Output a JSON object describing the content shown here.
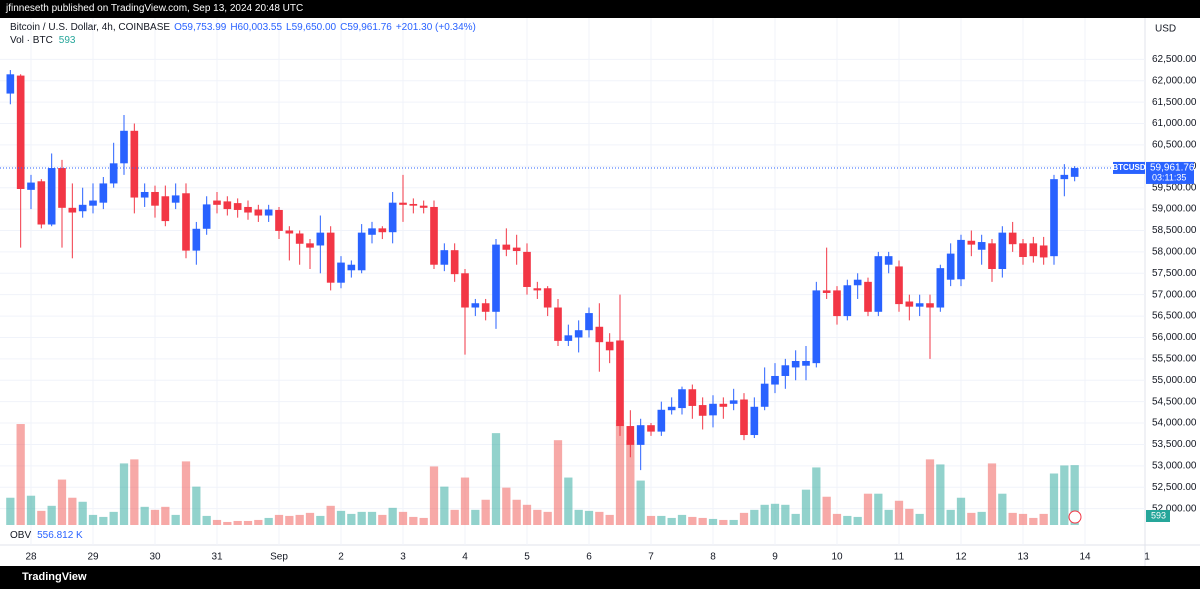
{
  "header": "jfinneseth published on TradingView.com, Sep 13, 2024 20:48 UTC",
  "footer": "TradingView",
  "chart_data": {
    "type": "candlestick",
    "title": "Bitcoin / U.S. Dollar, 4h, COINBASE",
    "ohlc_legend": [
      "O59,753.99",
      "H60,003.55",
      "L59,650.00",
      "C59,961.76",
      "+201.30 (+0.34%)"
    ],
    "currency": "USD",
    "up_color": "#2962ff",
    "down_color": "#f23645",
    "vol_up_color": "#26a69a",
    "vol_down_color": "#ef5350",
    "open": [
      61700,
      62120,
      59450,
      59650,
      58640,
      59960,
      59030,
      58950,
      59080,
      59150,
      59600,
      60070,
      60830,
      59270,
      59400,
      59300,
      59150,
      59370,
      58030,
      58540,
      59200,
      59180,
      59140,
      59050,
      58990,
      58850,
      58980,
      58500,
      58430,
      58200,
      58150,
      58450,
      57280,
      57570,
      57570,
      58400,
      58550,
      58460,
      59150,
      59120,
      59080,
      59050,
      57700,
      58040,
      57500,
      56700,
      56800,
      56600,
      58170,
      58100,
      58000,
      57150,
      57150,
      56700,
      55920,
      56000,
      56170,
      56250,
      55900,
      55930,
      53930,
      53490,
      53950,
      53800,
      54300,
      54350,
      54790,
      54420,
      54180,
      54450,
      54450,
      54550,
      53720,
      54380,
      54900,
      55100,
      55300,
      55340,
      55400,
      57100,
      57100,
      56500,
      57220,
      57300,
      56600,
      57700,
      57660,
      56840,
      56720,
      56800,
      56700,
      57350,
      57360,
      58260,
      58050,
      58200,
      57600,
      58450,
      58200,
      58200,
      58150,
      57900,
      59700,
      59753.99
    ],
    "high": [
      62250,
      62150,
      59800,
      59700,
      60300,
      60150,
      59600,
      59500,
      59600,
      59750,
      60550,
      61200,
      61000,
      59600,
      59550,
      59550,
      59600,
      59600,
      58700,
      59300,
      59400,
      59300,
      59250,
      59200,
      59100,
      59100,
      59050,
      58600,
      58500,
      58300,
      58850,
      58600,
      57900,
      57800,
      58650,
      58700,
      58600,
      59400,
      59800,
      59250,
      59200,
      59200,
      58200,
      58200,
      57600,
      56900,
      56900,
      58300,
      58550,
      58400,
      58200,
      57300,
      57200,
      56900,
      56300,
      56400,
      56700,
      56800,
      56100,
      57000,
      54300,
      54100,
      54000,
      54500,
      54600,
      54850,
      54900,
      54600,
      54650,
      54600,
      54800,
      54700,
      54600,
      55300,
      55400,
      55500,
      55700,
      55800,
      57300,
      58100,
      57200,
      57350,
      57500,
      57400,
      58000,
      58000,
      57800,
      57000,
      57000,
      57000,
      57700,
      58200,
      58400,
      58500,
      58400,
      58300,
      58600,
      58700,
      58300,
      58350,
      58350,
      59800,
      60050,
      60003.55
    ],
    "low": [
      61450,
      58100,
      59000,
      58550,
      58600,
      58100,
      57850,
      58800,
      58900,
      59000,
      59500,
      59800,
      58900,
      59050,
      58800,
      58600,
      59000,
      57850,
      57700,
      58400,
      58900,
      58850,
      58800,
      58750,
      58700,
      58700,
      58300,
      57800,
      57700,
      57600,
      57500,
      57100,
      57150,
      57400,
      57500,
      58200,
      58300,
      58200,
      58700,
      58900,
      58900,
      57600,
      57550,
      57300,
      55600,
      56500,
      56400,
      56200,
      57900,
      57700,
      57000,
      56900,
      56500,
      55800,
      55800,
      55650,
      56000,
      55200,
      55400,
      53700,
      53200,
      52900,
      53700,
      53700,
      54200,
      54200,
      54100,
      53850,
      53900,
      54100,
      54300,
      53600,
      53650,
      54300,
      54700,
      54800,
      55000,
      55000,
      55300,
      56900,
      56300,
      56400,
      56900,
      56500,
      56500,
      57500,
      56600,
      56400,
      56500,
      55500,
      56600,
      57200,
      57200,
      57900,
      57700,
      57300,
      57400,
      58000,
      57700,
      57750,
      57700,
      57700,
      59300,
      59650
    ],
    "close": [
      62150,
      59470,
      59620,
      58640,
      59960,
      59030,
      58920,
      59100,
      59200,
      59600,
      60070,
      60830,
      59270,
      59400,
      59080,
      58720,
      59320,
      58030,
      58540,
      59110,
      59100,
      59000,
      58980,
      58920,
      58850,
      58990,
      58490,
      58430,
      58190,
      58100,
      58450,
      57280,
      57750,
      57700,
      58450,
      58550,
      58460,
      59150,
      59100,
      59080,
      59030,
      57700,
      58040,
      57480,
      56700,
      56800,
      56600,
      58170,
      58050,
      58020,
      57180,
      57100,
      56700,
      55920,
      56050,
      56170,
      56570,
      55890,
      55700,
      53930,
      53490,
      53950,
      53800,
      54310,
      54380,
      54790,
      54400,
      54170,
      54450,
      54380,
      54530,
      53720,
      54380,
      54920,
      55100,
      55350,
      55450,
      55450,
      57100,
      57040,
      56500,
      57220,
      57350,
      56600,
      57900,
      57900,
      56780,
      56720,
      56800,
      56700,
      57620,
      57960,
      58280,
      58170,
      58230,
      57600,
      58450,
      58180,
      57880,
      57900,
      57870,
      59700,
      59800,
      59961.76
    ],
    "volume": {
      "name": "Vol · BTC",
      "label": "593",
      "values": [
        270,
        1000,
        290,
        140,
        190,
        450,
        270,
        230,
        100,
        80,
        130,
        610,
        650,
        180,
        150,
        180,
        100,
        630,
        380,
        90,
        50,
        30,
        40,
        40,
        50,
        70,
        100,
        90,
        100,
        120,
        90,
        190,
        140,
        110,
        130,
        130,
        100,
        170,
        130,
        80,
        70,
        580,
        380,
        150,
        470,
        150,
        250,
        910,
        370,
        250,
        200,
        150,
        130,
        840,
        470,
        150,
        140,
        130,
        100,
        1040,
        840,
        440,
        90,
        90,
        70,
        100,
        80,
        70,
        60,
        50,
        50,
        120,
        150,
        200,
        210,
        200,
        110,
        350,
        570,
        280,
        110,
        90,
        80,
        310,
        310,
        150,
        240,
        160,
        110,
        650,
        600,
        150,
        270,
        120,
        130,
        610,
        310,
        120,
        110,
        70,
        110,
        510,
        590,
        593
      ]
    },
    "obv": {
      "name": "OBV",
      "label": "556.812 K"
    },
    "last_price": {
      "symbol": "BTCUSD",
      "value": 59961.76,
      "label": "59,961.76",
      "countdown": "03:11:35"
    },
    "xlim": [
      -1,
      110
    ],
    "xticks": [
      {
        "value": 2,
        "label": "28"
      },
      {
        "value": 8,
        "label": "29"
      },
      {
        "value": 14,
        "label": "30"
      },
      {
        "value": 20,
        "label": "31"
      },
      {
        "value": 26,
        "label": "Sep"
      },
      {
        "value": 32,
        "label": "2"
      },
      {
        "value": 38,
        "label": "3"
      },
      {
        "value": 44,
        "label": "4"
      },
      {
        "value": 50,
        "label": "5"
      },
      {
        "value": 56,
        "label": "6"
      },
      {
        "value": 62,
        "label": "7"
      },
      {
        "value": 68,
        "label": "8"
      },
      {
        "value": 74,
        "label": "9"
      },
      {
        "value": 80,
        "label": "10"
      },
      {
        "value": 86,
        "label": "11"
      },
      {
        "value": 92,
        "label": "12"
      },
      {
        "value": 98,
        "label": "13"
      },
      {
        "value": 104,
        "label": "14"
      },
      {
        "value": 110,
        "label": "1"
      }
    ],
    "ylim": [
      51150,
      63466
    ],
    "yticks": [
      {
        "value": 52000,
        "label": "52,000.00"
      },
      {
        "value": 52500,
        "label": "52,500.00"
      },
      {
        "value": 53000,
        "label": "53,000.00"
      },
      {
        "value": 53500,
        "label": "53,500.00"
      },
      {
        "value": 54000,
        "label": "54,000.00"
      },
      {
        "value": 54500,
        "label": "54,500.00"
      },
      {
        "value": 55000,
        "label": "55,000.00"
      },
      {
        "value": 55500,
        "label": "55,500.00"
      },
      {
        "value": 56000,
        "label": "56,000.00"
      },
      {
        "value": 56500,
        "label": "56,500.00"
      },
      {
        "value": 57000,
        "label": "57,000.00"
      },
      {
        "value": 57500,
        "label": "57,500.00"
      },
      {
        "value": 58000,
        "label": "58,000.00"
      },
      {
        "value": 58500,
        "label": "58,500.00"
      },
      {
        "value": 59000,
        "label": "59,000.00"
      },
      {
        "value": 59500,
        "label": "59,500.00"
      },
      {
        "value": 60000,
        "label": "60,000.00"
      },
      {
        "value": 60500,
        "label": "60,500.00"
      },
      {
        "value": 61000,
        "label": "61,000.00"
      },
      {
        "value": 61500,
        "label": "61,500.00"
      },
      {
        "value": 62000,
        "label": "62,000.00"
      },
      {
        "value": 62500,
        "label": "62,500.00"
      }
    ],
    "grid": true
  }
}
